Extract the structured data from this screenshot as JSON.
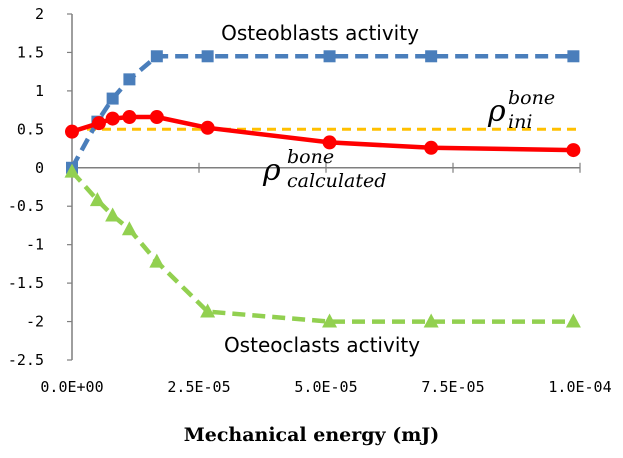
{
  "chart_data": {
    "type": "line",
    "xlabel": "Mechanical energy (mJ)",
    "ylabel": "",
    "xlim": [
      0,
      0.0001
    ],
    "ylim": [
      -2.5,
      2
    ],
    "xticks": [
      0,
      2.5e-05,
      5e-05,
      7.5e-05,
      0.0001
    ],
    "xtick_labels": [
      "0.0E+00",
      "2.5E-05",
      "5.0E-05",
      "7.5E-05",
      "1.0E-04"
    ],
    "yticks": [
      2,
      1.5,
      1,
      0.5,
      0,
      -0.5,
      -1,
      -1.5,
      -2,
      -2.5
    ],
    "ytick_labels": [
      "2",
      "1.5",
      "1",
      "0.5",
      "0",
      "-0.5",
      "-1",
      "-1.5",
      "-2",
      "-2.5"
    ],
    "grid": false,
    "annotations": {
      "osteoblasts": "Osteoblasts activity",
      "osteoclasts": "Osteoclasts activity",
      "rho_ini": {
        "base": "ρ",
        "sup": "bone",
        "sub": "ini"
      },
      "rho_calc": {
        "base": "ρ",
        "sup": "bone",
        "sub": "calculated"
      }
    },
    "series": [
      {
        "key": "osteoblasts",
        "color": "#4a7ebb",
        "marker": "square",
        "dashed": true,
        "x": [
          0,
          5e-06,
          8e-06,
          1.13e-05,
          1.67e-05,
          2.67e-05,
          5.07e-05,
          7.07e-05,
          9.87e-05
        ],
        "y": [
          0,
          0.6,
          0.9,
          1.15,
          1.45,
          1.45,
          1.45,
          1.45,
          1.45
        ]
      },
      {
        "key": "rho_calculated",
        "color": "#ff0000",
        "marker": "circle",
        "dashed": false,
        "x": [
          0,
          5.3e-06,
          8e-06,
          1.13e-05,
          1.67e-05,
          2.67e-05,
          5.07e-05,
          7.07e-05,
          9.87e-05
        ],
        "y": [
          0.47,
          0.58,
          0.64,
          0.66,
          0.66,
          0.52,
          0.33,
          0.26,
          0.23
        ]
      },
      {
        "key": "osteoclasts",
        "color": "#92d050",
        "marker": "triangle",
        "dashed": true,
        "x": [
          0,
          5e-06,
          8e-06,
          1.13e-05,
          1.67e-05,
          2.67e-05,
          5.07e-05,
          7.07e-05,
          9.87e-05
        ],
        "y": [
          -0.05,
          -0.42,
          -0.62,
          -0.8,
          -1.22,
          -1.87,
          -2.0,
          -2.0,
          -2.0
        ]
      },
      {
        "key": "rho_ini",
        "color": "#ffc000",
        "marker": "none",
        "dashed": true,
        "x": [
          0,
          0.0001
        ],
        "y": [
          0.5,
          0.5
        ]
      }
    ]
  }
}
